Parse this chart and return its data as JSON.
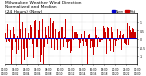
{
  "title_line1": "Milwaukee Weather Wind Direction",
  "title_line2": "Normalized and Median",
  "title_line3": "(24 Hours) (New)",
  "n_points": 288,
  "median_value": 0.05,
  "y_min": -1.5,
  "y_max": 1.5,
  "bar_color": "#cc0000",
  "median_line_color": "#0000cc",
  "background_color": "#ffffff",
  "grid_color": "#888888",
  "legend_norm_color": "#0000cc",
  "legend_med_color": "#cc0000",
  "title_fontsize": 3.2,
  "tick_fontsize": 2.2,
  "yticks": [
    -1.0,
    -0.5,
    0.0,
    0.5,
    1.0
  ],
  "n_xticks": 12
}
